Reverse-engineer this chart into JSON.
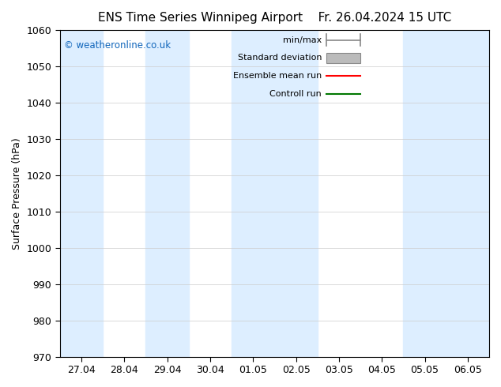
{
  "title": "ENS Time Series Winnipeg Airport",
  "title2": "Fr. 26.04.2024 15 UTC",
  "ylabel": "Surface Pressure (hPa)",
  "ylim": [
    970,
    1060
  ],
  "yticks": [
    970,
    980,
    990,
    1000,
    1010,
    1020,
    1030,
    1040,
    1050,
    1060
  ],
  "x_labels": [
    "27.04",
    "28.04",
    "29.04",
    "30.04",
    "01.05",
    "02.05",
    "03.05",
    "04.05",
    "05.05",
    "06.05"
  ],
  "x_positions": [
    0,
    1,
    2,
    3,
    4,
    5,
    6,
    7,
    8,
    9
  ],
  "xlim": [
    -0.5,
    9.5
  ],
  "shade_bands": [
    {
      "x_start": -0.5,
      "x_end": 0.5
    },
    {
      "x_start": 1.5,
      "x_end": 2.5
    },
    {
      "x_start": 3.5,
      "x_end": 5.5
    },
    {
      "x_start": 7.5,
      "x_end": 9.5
    }
  ],
  "shade_color": "#ddeeff",
  "background_color": "#ffffff",
  "plot_bg_color": "#ffffff",
  "legend_entries": [
    {
      "label": "min/max",
      "color": "#888888",
      "style": "errorbar"
    },
    {
      "label": "Standard deviation",
      "color": "#bbbbbb",
      "style": "band"
    },
    {
      "label": "Ensemble mean run",
      "color": "#ff0000",
      "style": "line"
    },
    {
      "label": "Controll run",
      "color": "#007700",
      "style": "line"
    }
  ],
  "watermark": "© weatheronline.co.uk",
  "watermark_color": "#1166bb",
  "grid_color": "#cccccc",
  "tick_label_fontsize": 9,
  "axis_label_fontsize": 9,
  "title_fontsize": 11
}
